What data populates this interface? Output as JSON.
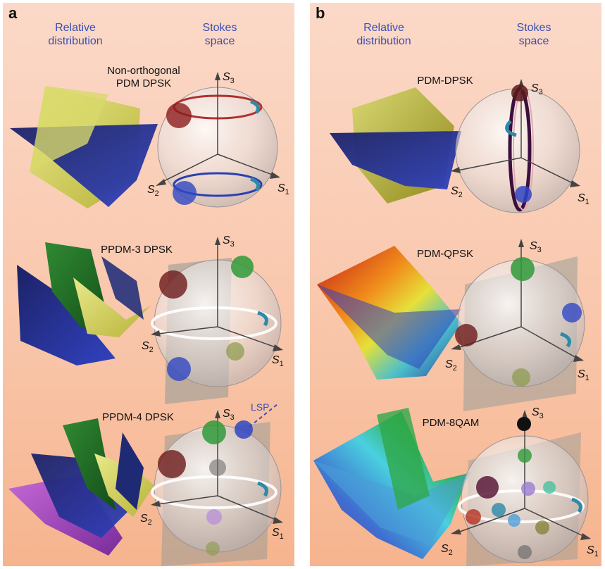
{
  "panels": [
    {
      "letter": "a",
      "heading_left": "Relative\ndistribution",
      "heading_right": "Stokes\nspace",
      "cases": [
        "Non-orthogonal\nPDM DPSK",
        "PPDM-3 DPSK",
        "PPDM-4 DPSK"
      ],
      "extra_label": "LSP"
    },
    {
      "letter": "b",
      "heading_left": "Relative\ndistribution",
      "heading_right": "Stokes\nspace",
      "cases": [
        "PDM-DPSK",
        "PDM-QPSK",
        "PDM-8QAM"
      ]
    }
  ],
  "axes": {
    "s1": "S",
    "s1_sub": "1",
    "s2": "S",
    "s2_sub": "2",
    "s3": "S",
    "s3_sub": "3"
  },
  "colors": {
    "panel_bg_top": "#fbd9c8",
    "panel_bg_bottom": "#f6b48e",
    "heading": "#3b4fb5"
  }
}
